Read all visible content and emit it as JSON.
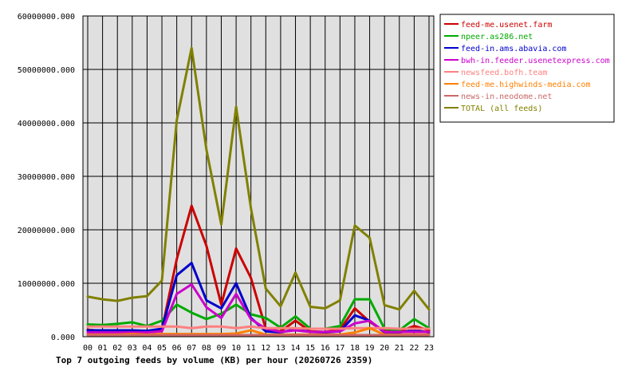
{
  "chart_data": {
    "type": "line",
    "title": "Top 7 outgoing feeds by volume (KB) per hour (20260726 2359)",
    "xlabel": "",
    "ylabel": "",
    "ylim": [
      0,
      60000000
    ],
    "y_ticks": [
      "0.000",
      "10000000.000",
      "20000000.000",
      "30000000.000",
      "40000000.000",
      "50000000.000",
      "60000000.000"
    ],
    "y_tick_values": [
      0,
      10000000,
      20000000,
      30000000,
      40000000,
      50000000,
      60000000
    ],
    "categories": [
      "00",
      "01",
      "02",
      "03",
      "04",
      "05",
      "06",
      "07",
      "08",
      "09",
      "10",
      "11",
      "12",
      "13",
      "14",
      "15",
      "16",
      "17",
      "18",
      "19",
      "20",
      "21",
      "22",
      "23"
    ],
    "grid": true,
    "legend_position": "top-right",
    "series": [
      {
        "name": "feed-me.usenet.farm",
        "color": "#cc0000",
        "values": [
          1300000,
          1100000,
          1100000,
          1100000,
          1000000,
          1300000,
          14500000,
          24500000,
          17000000,
          6000000,
          16500000,
          11000000,
          1500000,
          1000000,
          3000000,
          1000000,
          900000,
          1300000,
          5300000,
          2800000,
          1000000,
          1000000,
          2000000,
          1200000
        ]
      },
      {
        "name": "npeer.as286.net",
        "color": "#00aa00",
        "values": [
          2300000,
          2200000,
          2400000,
          2700000,
          2000000,
          3000000,
          6000000,
          4500000,
          3300000,
          4300000,
          6000000,
          4200000,
          3500000,
          1700000,
          3800000,
          1500000,
          1500000,
          2000000,
          7000000,
          7000000,
          1500000,
          1200000,
          3300000,
          1600000
        ]
      },
      {
        "name": "feed-in.ams.abavia.com",
        "color": "#0000cc",
        "values": [
          1200000,
          1200000,
          1200000,
          1200000,
          1100000,
          1500000,
          11500000,
          13800000,
          6800000,
          5300000,
          10000000,
          3500000,
          1000000,
          800000,
          1400000,
          900000,
          800000,
          1000000,
          4000000,
          3000000,
          800000,
          800000,
          1200000,
          800000
        ]
      },
      {
        "name": "bwh-in.feeder.usenetexpress.com",
        "color": "#cc00cc",
        "values": [
          800000,
          800000,
          800000,
          800000,
          800000,
          1000000,
          8000000,
          9800000,
          5500000,
          3500000,
          8000000,
          3300000,
          1500000,
          900000,
          1200000,
          900000,
          900000,
          1000000,
          2500000,
          3000000,
          900000,
          900000,
          900000,
          900000
        ]
      },
      {
        "name": "newsfeed.bofh.team",
        "color": "#ff8080",
        "values": [
          1900000,
          1900000,
          1900000,
          1900000,
          1900000,
          1900000,
          1900000,
          1600000,
          1900000,
          1900000,
          1600000,
          1900000,
          1600000,
          1600000,
          1600000,
          1500000,
          1500000,
          1500000,
          1600000,
          1600000,
          1600000,
          1500000,
          1500000,
          1500000
        ]
      },
      {
        "name": "feed-me.highwinds-media.com",
        "color": "#ff8000",
        "values": [
          400000,
          400000,
          400000,
          500000,
          400000,
          500000,
          500000,
          500000,
          500000,
          500000,
          600000,
          1200000,
          400000,
          400000,
          400000,
          400000,
          400000,
          400000,
          800000,
          1600000,
          400000,
          400000,
          400000,
          400000
        ]
      },
      {
        "name": "news-in.neodome.net",
        "color": "#cc6666",
        "values": [
          300000,
          300000,
          300000,
          300000,
          300000,
          300000,
          300000,
          300000,
          300000,
          300000,
          300000,
          300000,
          300000,
          300000,
          300000,
          300000,
          300000,
          300000,
          300000,
          300000,
          300000,
          300000,
          300000,
          300000
        ]
      },
      {
        "name": "TOTAL (all feeds)",
        "color": "#808000",
        "values": [
          7500000,
          7000000,
          6700000,
          7300000,
          7600000,
          10500000,
          40500000,
          54000000,
          35000000,
          21000000,
          43000000,
          24000000,
          9000000,
          5700000,
          12000000,
          5600000,
          5300000,
          6800000,
          20800000,
          18500000,
          5900000,
          5100000,
          8600000,
          5100000
        ]
      }
    ]
  }
}
